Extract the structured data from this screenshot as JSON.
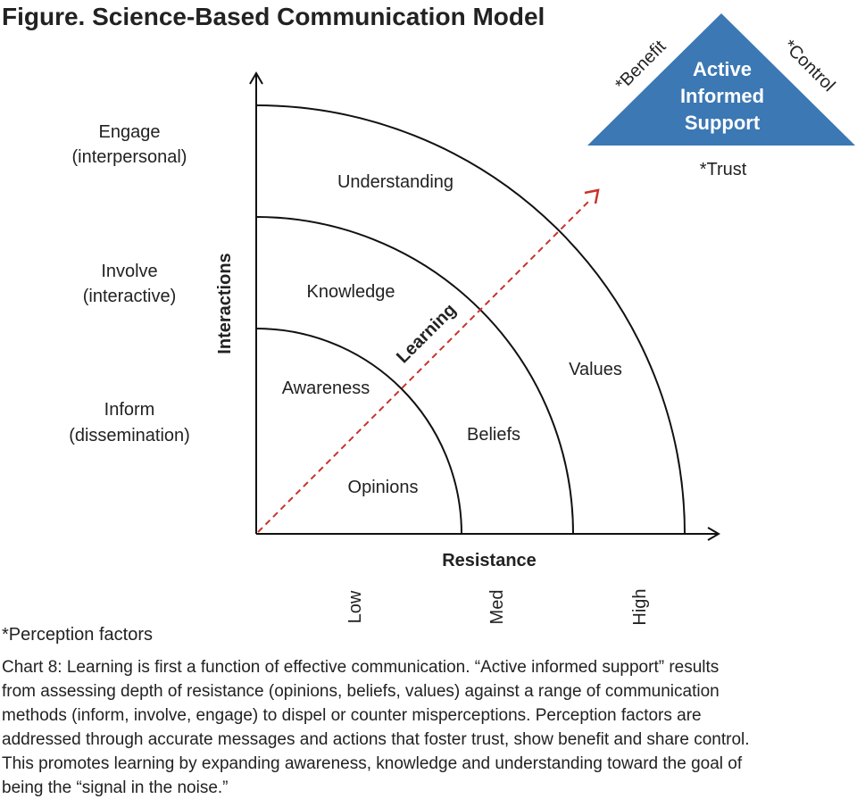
{
  "title": "Figure. Science-Based Communication Model",
  "triangle": {
    "lines": [
      "Active",
      "Informed",
      "Support"
    ],
    "factors": [
      "*Benefit",
      "*Control",
      "*Trust"
    ]
  },
  "y_axis": {
    "label": "Interactions",
    "levels": [
      {
        "name": "Engage",
        "note": "(interpersonal)"
      },
      {
        "name": "Involve",
        "note": "(interactive)"
      },
      {
        "name": "Inform",
        "note": "(dissemination)"
      }
    ]
  },
  "x_axis": {
    "label": "Resistance",
    "levels": [
      "Low",
      "Med",
      "High"
    ]
  },
  "regions": [
    "Understanding",
    "Knowledge",
    "Awareness",
    "Opinions",
    "Beliefs",
    "Values"
  ],
  "arrow_label": "Learning",
  "footnote": "*Perception factors",
  "caption": [
    "Chart 8: Learning is first a function of effective communication. “Active informed support” results",
    "from assessing depth of resistance (opinions, beliefs, values) against a range of communication",
    "methods (inform, involve, engage) to dispel or counter misperceptions. Perception factors are",
    "addressed through accurate messages and actions that foster trust, show benefit and share control.",
    "This promotes learning by expanding awareness, knowledge and understanding toward the goal of",
    "being the “signal in the noise.”"
  ]
}
